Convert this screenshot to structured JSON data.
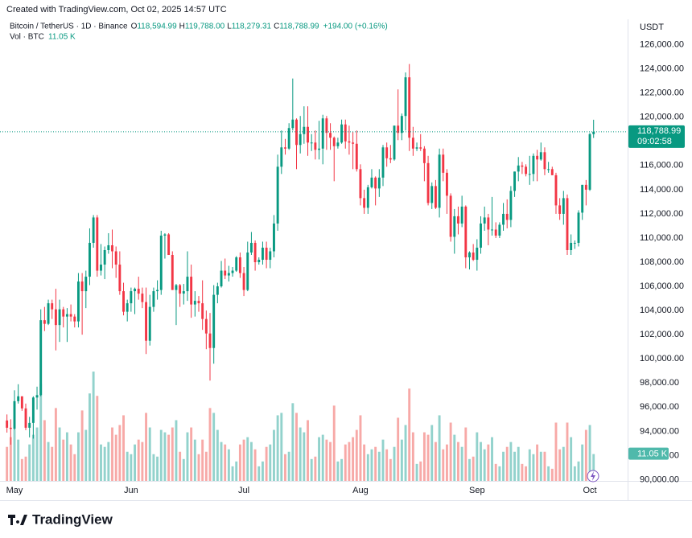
{
  "chart_data": {
    "type": "candlestick",
    "created": "Created with TradingView.com, Oct 02, 2025 14:57 UTC",
    "symbol": "Bitcoin / TetherUS · 1D · Binance",
    "ohlc_legend": [
      {
        "label": "O",
        "value": "118,594.99"
      },
      {
        "label": "H",
        "value": "119,788.00"
      },
      {
        "label": "L",
        "value": "118,279.31"
      },
      {
        "label": "C",
        "value": "118,788.99"
      }
    ],
    "change": "+194.00 (+0.16%)",
    "volume_title": "Vol · BTC",
    "volume_legend": "11.05 K",
    "currency": "USDT",
    "last_price_label": "118,788.99",
    "countdown": "09:02:58",
    "volume_tag": "11.05 K",
    "brand": "TradingView",
    "up_color": "#089981",
    "down_color": "#f23645",
    "volume_up_color": "#92d2cc",
    "volume_down_color": "#f7a9a7",
    "grid": false,
    "xlim": [
      -1.85,
      165.05
    ],
    "xticks": [
      {
        "value": 2,
        "label": "May"
      },
      {
        "value": 33,
        "label": "Jun"
      },
      {
        "value": 63,
        "label": "Jul"
      },
      {
        "value": 94,
        "label": "Aug"
      },
      {
        "value": 125,
        "label": "Sep"
      },
      {
        "value": 155,
        "label": "Oct"
      }
    ],
    "ylim": [
      89900,
      128100
    ],
    "yticks": [
      {
        "value": 90000,
        "label": "90,000.00"
      },
      {
        "value": 92000,
        "label": "92,000.00"
      },
      {
        "value": 94000,
        "label": "94,000.00"
      },
      {
        "value": 96000,
        "label": "96,000.00"
      },
      {
        "value": 98000,
        "label": "98,000.00"
      },
      {
        "value": 100000,
        "label": "100,000.00"
      },
      {
        "value": 102000,
        "label": "102,000.00"
      },
      {
        "value": 104000,
        "label": "104,000.00"
      },
      {
        "value": 106000,
        "label": "106,000.00"
      },
      {
        "value": 108000,
        "label": "108,000.00"
      },
      {
        "value": 110000,
        "label": "110,000.00"
      },
      {
        "value": 112000,
        "label": "112,000.00"
      },
      {
        "value": 114000,
        "label": "114,000.00"
      },
      {
        "value": 116000,
        "label": "116,000.00"
      },
      {
        "value": 118000,
        "label": "118,000.00"
      },
      {
        "value": 120000,
        "label": "120,000.00"
      },
      {
        "value": 122000,
        "label": "122,000.00"
      },
      {
        "value": 124000,
        "label": "124,000.00"
      },
      {
        "value": 126000,
        "label": "126,000.00"
      }
    ],
    "volume_ylim": [
      0,
      190000
    ],
    "open": [
      94900,
      94300,
      94200,
      96500,
      96900,
      95900,
      94300,
      94700,
      96800,
      97000,
      103200,
      102900,
      104600,
      104100,
      102800,
      104100,
      103500,
      103700,
      103500,
      103100,
      106400,
      105600,
      106800,
      109600,
      111700,
      107300,
      107800,
      109000,
      109400,
      108900,
      107800,
      105600,
      103900,
      104600,
      105600,
      105800,
      105400,
      104700,
      101500,
      104300,
      105600,
      105700,
      110200,
      110300,
      108600,
      105700,
      106100,
      105400,
      105600,
      106800,
      104500,
      104800,
      104600,
      103300,
      102100,
      100900,
      105300,
      106000,
      107300,
      106900,
      107100,
      107300,
      108400,
      107100,
      105700,
      108800,
      109600,
      108000,
      108200,
      109200,
      108200,
      108900,
      111200,
      115900,
      117500,
      117400,
      119100,
      119800,
      117700,
      118600,
      119200,
      117900,
      117900,
      117300,
      117400,
      119900,
      118700,
      118300,
      117600,
      117900,
      119400,
      118000,
      117900,
      117800,
      115700,
      113300,
      112500,
      114200,
      115000,
      114100,
      115000,
      117500,
      116600,
      116500,
      119300,
      118700,
      120100,
      123300,
      118300,
      117400,
      117500,
      117400,
      116200,
      112900,
      114300,
      112500,
      116900,
      115400,
      113500,
      110100,
      111800,
      111200,
      112600,
      108400,
      108800,
      108200,
      109200,
      111200,
      111700,
      110700,
      110700,
      110200,
      111100,
      112000,
      111500,
      113900,
      115500,
      116000,
      115900,
      115300,
      115300,
      116800,
      116500,
      117100,
      115700,
      115700,
      115200,
      112700,
      112000,
      113300,
      109000,
      109600,
      109600,
      112100,
      114400,
      114000,
      118594.99
    ],
    "high": [
      95400,
      95000,
      97400,
      97900,
      96900,
      96300,
      95200,
      96900,
      97700,
      104100,
      104300,
      104900,
      104900,
      105800,
      104900,
      104300,
      104200,
      104500,
      103700,
      107100,
      107100,
      107300,
      110800,
      111900,
      111900,
      109500,
      109300,
      110400,
      110700,
      109300,
      108900,
      106300,
      104900,
      105900,
      105900,
      106800,
      105900,
      105900,
      105300,
      105900,
      106500,
      110600,
      110400,
      110400,
      108900,
      106200,
      106200,
      106200,
      108900,
      107800,
      105600,
      105200,
      106500,
      104000,
      103800,
      106100,
      106300,
      108100,
      108300,
      107700,
      107600,
      108500,
      108800,
      107600,
      109700,
      110500,
      109800,
      108400,
      109700,
      109700,
      109200,
      111900,
      116900,
      118900,
      118200,
      119500,
      123200,
      119900,
      120100,
      120900,
      120900,
      118600,
      118900,
      119700,
      120200,
      120100,
      119500,
      118400,
      118300,
      119800,
      119800,
      119300,
      118800,
      118900,
      116100,
      114000,
      114400,
      115700,
      115100,
      115700,
      117700,
      117900,
      117700,
      119300,
      122300,
      120300,
      123700,
      124400,
      119200,
      117900,
      118600,
      117600,
      116800,
      114600,
      114800,
      117400,
      117400,
      115700,
      113700,
      112400,
      112600,
      113500,
      112700,
      108900,
      109500,
      109900,
      111800,
      112600,
      112000,
      113400,
      111300,
      111300,
      112900,
      113200,
      114300,
      115500,
      116700,
      116300,
      116100,
      116800,
      117000,
      117300,
      117900,
      117500,
      116300,
      115900,
      115400,
      113300,
      113900,
      113600,
      110300,
      109800,
      112300,
      114400,
      114800,
      118700,
      119788
    ],
    "low": [
      93900,
      92900,
      94100,
      96300,
      95700,
      94100,
      93500,
      93400,
      95800,
      96900,
      102300,
      102800,
      103300,
      100700,
      101400,
      102600,
      101400,
      103100,
      102600,
      102600,
      102000,
      104200,
      106100,
      109200,
      106800,
      106900,
      106600,
      108700,
      107500,
      106700,
      105300,
      103600,
      103100,
      103900,
      103700,
      104900,
      104200,
      100400,
      101100,
      103900,
      104900,
      105300,
      108300,
      108600,
      105700,
      102800,
      104300,
      104500,
      104800,
      103400,
      103500,
      103900,
      102400,
      100800,
      98200,
      99600,
      104600,
      105900,
      106600,
      106400,
      106800,
      107200,
      106700,
      105200,
      105600,
      108600,
      107300,
      107800,
      107800,
      107500,
      107500,
      108400,
      110600,
      115300,
      116900,
      117300,
      118900,
      115700,
      117000,
      117800,
      116800,
      117200,
      116500,
      116500,
      116100,
      117300,
      117300,
      114700,
      117400,
      117800,
      117400,
      116900,
      115700,
      115500,
      112700,
      112000,
      112000,
      114100,
      112700,
      113400,
      114300,
      115900,
      116200,
      116400,
      118100,
      118100,
      118900,
      117200,
      116800,
      117200,
      117200,
      114700,
      112700,
      112400,
      112400,
      111700,
      114700,
      112000,
      109700,
      108700,
      110300,
      110900,
      107500,
      107400,
      108100,
      107300,
      108700,
      110600,
      109400,
      110200,
      110000,
      110000,
      110600,
      110800,
      110900,
      113400,
      114700,
      115300,
      115100,
      114400,
      114700,
      114700,
      116400,
      115200,
      115400,
      115200,
      112000,
      111500,
      111100,
      108600,
      108600,
      109100,
      109300,
      111500,
      112700,
      113900,
      118279.31
    ],
    "close": [
      94300,
      94200,
      96500,
      96900,
      95900,
      94300,
      94700,
      96800,
      97000,
      103200,
      102900,
      104600,
      104100,
      102800,
      104100,
      103500,
      103700,
      103500,
      103100,
      106400,
      105600,
      106800,
      109600,
      111700,
      107300,
      107800,
      109000,
      109400,
      108900,
      107800,
      105600,
      103900,
      104600,
      105600,
      105800,
      105400,
      104700,
      101500,
      104300,
      105600,
      105700,
      110200,
      110300,
      108600,
      105700,
      106100,
      105400,
      105600,
      106800,
      104500,
      104800,
      104600,
      103300,
      102100,
      100900,
      105300,
      106000,
      107300,
      106900,
      107100,
      107300,
      108400,
      107100,
      105700,
      108800,
      109600,
      108000,
      108200,
      109200,
      108200,
      108900,
      111200,
      115900,
      117500,
      117400,
      119100,
      119800,
      117700,
      118600,
      119200,
      117900,
      117900,
      117300,
      117400,
      119900,
      118700,
      118300,
      117600,
      117900,
      119400,
      118000,
      117900,
      117800,
      115700,
      113300,
      112500,
      114200,
      115000,
      114100,
      115000,
      117500,
      116600,
      116500,
      119300,
      118700,
      120100,
      123300,
      118300,
      117400,
      117500,
      117400,
      116200,
      112900,
      114300,
      112500,
      116900,
      115400,
      113500,
      110100,
      111800,
      111200,
      112600,
      108400,
      108800,
      108200,
      109200,
      111200,
      111700,
      110700,
      110700,
      110200,
      111100,
      112000,
      111500,
      113900,
      115500,
      116000,
      115900,
      115300,
      115300,
      116800,
      116500,
      117100,
      115700,
      115700,
      115200,
      112700,
      112000,
      113300,
      109000,
      109600,
      109600,
      112100,
      114400,
      114000,
      118594.99,
      118788.99
    ],
    "volume": [
      14000,
      18000,
      21000,
      17000,
      9000,
      10000,
      15000,
      19000,
      22000,
      40000,
      25000,
      16000,
      14000,
      30000,
      22000,
      17000,
      20000,
      15000,
      11000,
      20000,
      29000,
      21000,
      36000,
      45000,
      35000,
      15000,
      14000,
      16000,
      22000,
      19000,
      23000,
      27000,
      12000,
      11000,
      15000,
      17000,
      16000,
      28000,
      22000,
      11000,
      10000,
      21000,
      20000,
      19000,
      22000,
      25000,
      12000,
      9000,
      20000,
      22000,
      17000,
      11000,
      17000,
      12000,
      30000,
      28000,
      21000,
      16000,
      15000,
      13000,
      6000,
      8000,
      15000,
      17000,
      18000,
      16000,
      13000,
      6000,
      8000,
      14000,
      15000,
      21000,
      27000,
      28000,
      11000,
      12000,
      32000,
      28000,
      22000,
      20000,
      25000,
      9000,
      10000,
      18000,
      19000,
      17000,
      16000,
      31000,
      8000,
      9000,
      15000,
      16000,
      18000,
      21000,
      27000,
      15000,
      11000,
      13000,
      14000,
      12000,
      17000,
      13000,
      9000,
      14000,
      26000,
      17000,
      23000,
      38000,
      20000,
      7000,
      8000,
      20000,
      19000,
      23000,
      16000,
      27000,
      13000,
      15000,
      24000,
      19000,
      16000,
      14000,
      22000,
      9000,
      10000,
      20000,
      16000,
      13000,
      15000,
      18000,
      7000,
      6000,
      12000,
      14000,
      16000,
      12000,
      14000,
      7000,
      6000,
      13000,
      11000,
      15000,
      12000,
      12000,
      6000,
      5000,
      24000,
      13000,
      14000,
      24000,
      18000,
      6000,
      8000,
      15000,
      21000,
      23000,
      11050
    ]
  }
}
